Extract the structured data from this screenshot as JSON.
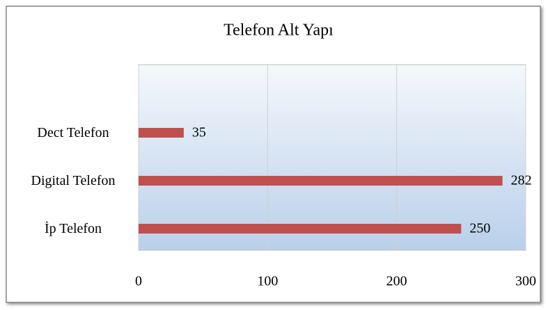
{
  "chart_data": {
    "type": "bar",
    "orientation": "horizontal",
    "title": "Telefon Alt Yapı",
    "categories": [
      "İp Telefon",
      "Digital Telefon",
      "Dect Telefon"
    ],
    "values": [
      250,
      282,
      35
    ],
    "color": "#c0504d",
    "xlim": [
      0,
      300
    ],
    "xticks": [
      0,
      100,
      200,
      300
    ],
    "grid": true
  }
}
